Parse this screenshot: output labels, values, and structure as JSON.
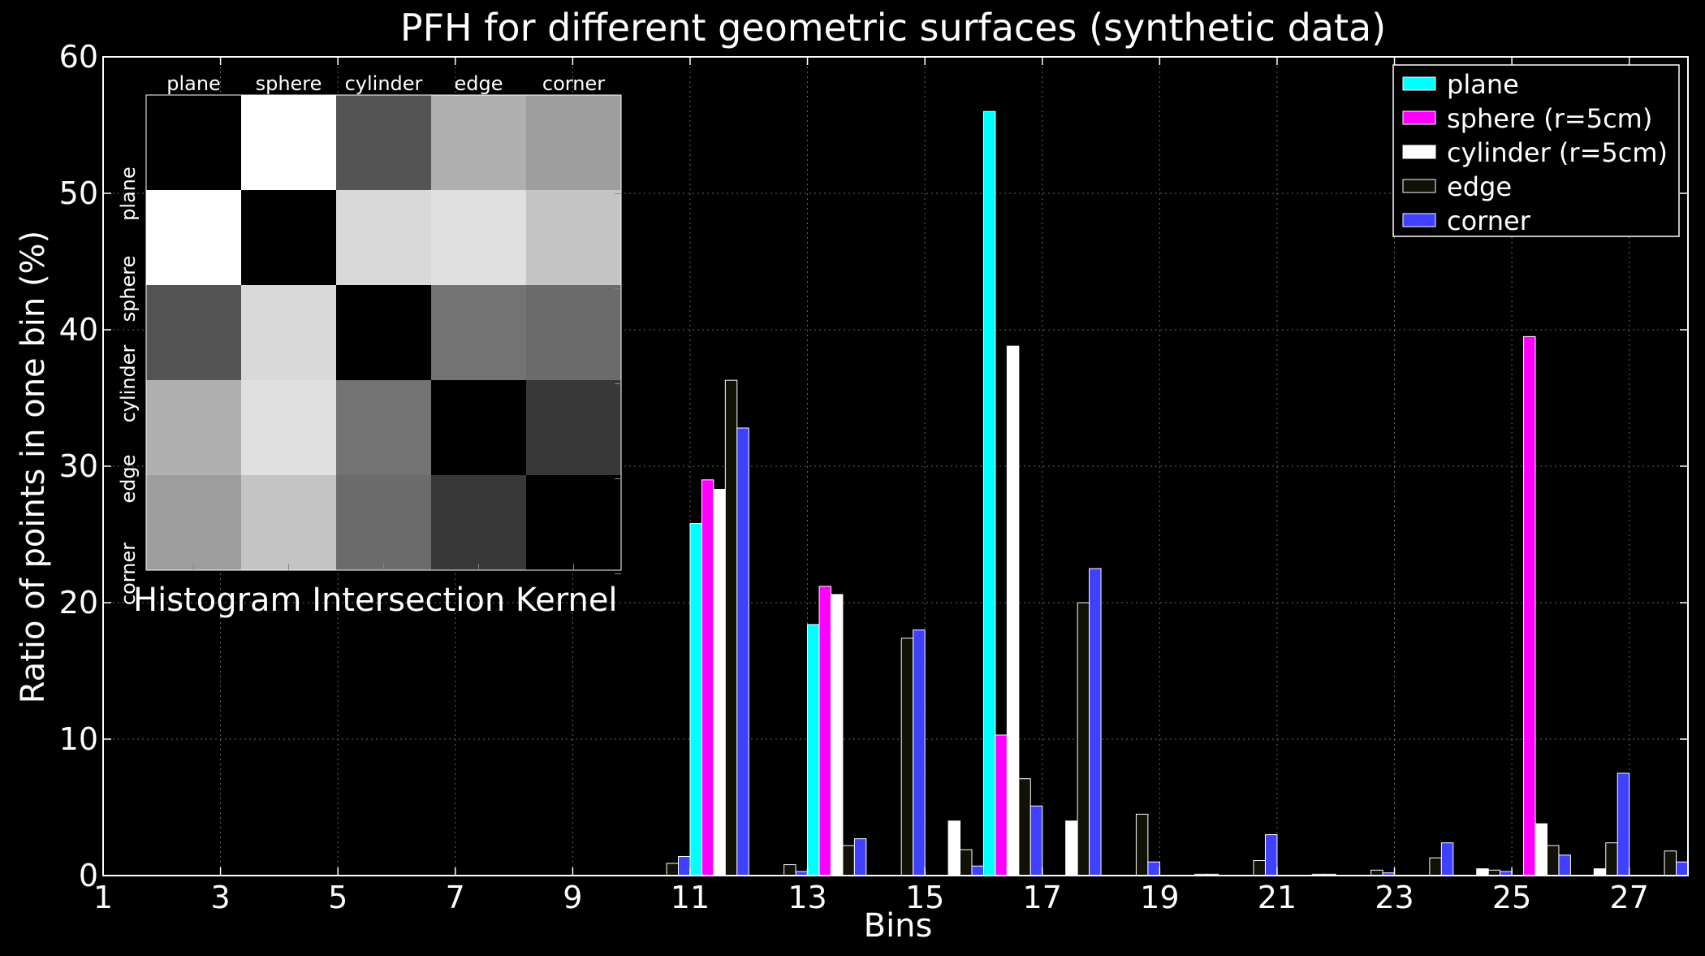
{
  "chart_data": {
    "type": "bar",
    "title": "PFH for different geometric surfaces (synthetic data)",
    "xlabel": "Bins",
    "ylabel": "Ratio of points in one bin (%)",
    "xlim": [
      1,
      28
    ],
    "ylim": [
      0,
      60
    ],
    "xticks": [
      1,
      3,
      5,
      7,
      9,
      11,
      13,
      15,
      17,
      19,
      21,
      23,
      25,
      27
    ],
    "yticks": [
      0,
      10,
      20,
      30,
      40,
      50,
      60
    ],
    "grid": true,
    "legend_position": "top-right",
    "bins": [
      10,
      11,
      12,
      13,
      14,
      15,
      16,
      17,
      18,
      19,
      20,
      21,
      22,
      23,
      24,
      25,
      26,
      27
    ],
    "series": [
      {
        "name": "plane",
        "color": "#00ffff",
        "values": [
          0,
          25.8,
          0,
          18.4,
          0,
          0,
          56.0,
          0,
          0,
          0,
          0,
          0,
          0,
          0,
          0,
          0,
          0,
          0
        ]
      },
      {
        "name": "sphere (r=5cm)",
        "color": "#ff00ff",
        "values": [
          0,
          29.0,
          0,
          21.2,
          0,
          0,
          10.3,
          0,
          0,
          0,
          0,
          0,
          0,
          0,
          0,
          39.5,
          0,
          0
        ]
      },
      {
        "name": "cylinder (r=5cm)",
        "color": "#ffffff",
        "values": [
          0,
          28.3,
          0,
          20.6,
          0,
          4.0,
          38.8,
          4.0,
          0,
          0,
          0,
          0,
          0,
          0,
          0.5,
          3.8,
          0.5,
          0
        ]
      },
      {
        "name": "edge",
        "color": "#111108",
        "values": [
          0.9,
          36.3,
          0.8,
          2.2,
          17.4,
          1.9,
          7.1,
          20.0,
          4.5,
          0.1,
          1.1,
          0.1,
          0.4,
          1.3,
          0.4,
          2.2,
          2.4,
          1.8
        ]
      },
      {
        "name": "corner",
        "color": "#4040ff",
        "values": [
          1.4,
          32.8,
          0.3,
          2.7,
          18.0,
          0.7,
          5.1,
          22.5,
          1.0,
          0.1,
          3.0,
          0.1,
          0.2,
          2.4,
          0.3,
          1.5,
          7.5,
          1.0
        ]
      }
    ],
    "inset": {
      "type": "heatmap",
      "title": "Histogram Intersection Kernel",
      "labels": [
        "plane",
        "sphere",
        "cylinder",
        "edge",
        "corner"
      ],
      "matrix": [
        [
          0.0,
          1.0,
          0.33,
          0.69,
          0.62
        ],
        [
          1.0,
          0.0,
          0.85,
          0.88,
          0.77
        ],
        [
          0.33,
          0.85,
          0.0,
          0.45,
          0.42
        ],
        [
          0.69,
          0.88,
          0.45,
          0.0,
          0.22
        ],
        [
          0.62,
          0.77,
          0.42,
          0.22,
          0.0
        ]
      ]
    }
  }
}
